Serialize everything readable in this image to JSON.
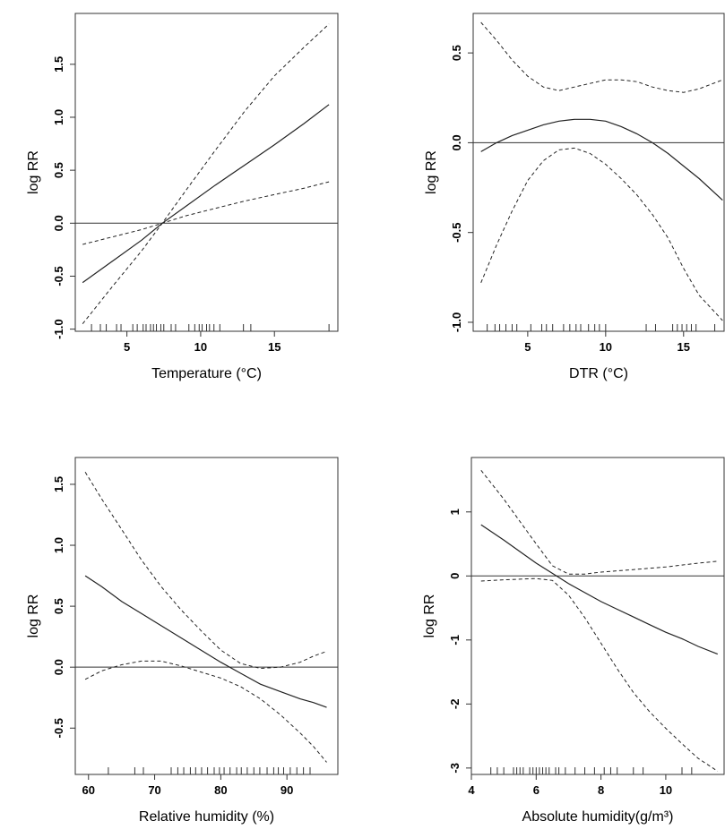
{
  "chart_data": [
    {
      "type": "line",
      "xlabel": "Temperature (°C)",
      "ylabel": "log RR",
      "xlim": [
        1.5,
        19.3
      ],
      "ylim": [
        -1.02,
        1.98
      ],
      "xticks": [
        5,
        10,
        15
      ],
      "xtick_labels": [
        "5",
        "10",
        "15"
      ],
      "yticks": [
        -1.0,
        -0.5,
        0.0,
        0.5,
        1.0,
        1.5
      ],
      "ytick_labels": [
        "-1.0",
        "-0.5",
        "0.0",
        "0.5",
        "1.0",
        "1.5"
      ],
      "reference_line": 0,
      "series": [
        {
          "style": "solid",
          "x": [
            2,
            4,
            6,
            7.4,
            9,
            11,
            13,
            15,
            17,
            18.7
          ],
          "y": [
            -0.56,
            -0.36,
            -0.16,
            0.0,
            0.16,
            0.36,
            0.55,
            0.74,
            0.94,
            1.12
          ]
        },
        {
          "style": "dashed",
          "x": [
            2,
            4,
            6,
            7.4,
            9,
            11,
            13,
            15,
            17,
            18.7
          ],
          "y": [
            -0.95,
            -0.6,
            -0.26,
            0.0,
            0.31,
            0.69,
            1.06,
            1.39,
            1.66,
            1.88
          ]
        },
        {
          "style": "dashed",
          "x": [
            2,
            4,
            6,
            7.4,
            9,
            11,
            13,
            15,
            17,
            18.7
          ],
          "y": [
            -0.2,
            -0.13,
            -0.06,
            0.0,
            0.07,
            0.14,
            0.21,
            0.27,
            0.33,
            0.39
          ]
        }
      ],
      "rug": [
        2.6,
        3.2,
        3.6,
        4.3,
        4.6,
        5.4,
        5.7,
        6.1,
        6.3,
        6.6,
        6.8,
        7.0,
        7.3,
        7.5,
        8.0,
        8.3,
        9.2,
        9.6,
        9.9,
        10.1,
        10.4,
        10.6,
        10.9,
        11.3,
        12.9,
        13.4,
        18.7
      ]
    },
    {
      "type": "line",
      "xlabel": "DTR (°C)",
      "ylabel": "log RR",
      "xlim": [
        1.5,
        17.6
      ],
      "ylim": [
        -1.05,
        0.72
      ],
      "xticks": [
        5,
        10,
        15
      ],
      "xtick_labels": [
        "5",
        "10",
        "15"
      ],
      "yticks": [
        -1.0,
        -0.5,
        0.0,
        0.5
      ],
      "ytick_labels": [
        "-1.0",
        "-0.5",
        "0.0",
        "0.5"
      ],
      "reference_line": 0,
      "series": [
        {
          "style": "solid",
          "x": [
            2,
            3,
            4,
            5,
            6,
            7,
            8,
            9,
            10,
            11,
            12,
            13,
            14,
            15,
            16,
            17.5
          ],
          "y": [
            -0.05,
            0.0,
            0.04,
            0.07,
            0.1,
            0.12,
            0.13,
            0.13,
            0.12,
            0.09,
            0.05,
            0.0,
            -0.06,
            -0.13,
            -0.2,
            -0.32
          ]
        },
        {
          "style": "dashed",
          "x": [
            2,
            3,
            4,
            5,
            6,
            7,
            8,
            9,
            10,
            11,
            12,
            13,
            14,
            15,
            16,
            17.5
          ],
          "y": [
            0.67,
            0.57,
            0.46,
            0.37,
            0.31,
            0.29,
            0.31,
            0.33,
            0.35,
            0.35,
            0.34,
            0.31,
            0.29,
            0.28,
            0.3,
            0.35
          ]
        },
        {
          "style": "dashed",
          "x": [
            2,
            3,
            4,
            5,
            6,
            7,
            8,
            9,
            10,
            11,
            12,
            13,
            14,
            15,
            16,
            17.5
          ],
          "y": [
            -0.78,
            -0.57,
            -0.38,
            -0.21,
            -0.1,
            -0.04,
            -0.03,
            -0.06,
            -0.12,
            -0.2,
            -0.29,
            -0.4,
            -0.53,
            -0.7,
            -0.85,
            -0.99
          ]
        }
      ],
      "rug": [
        2.4,
        2.9,
        3.2,
        3.6,
        4.0,
        4.3,
        5.2,
        5.9,
        6.2,
        6.6,
        7.3,
        7.7,
        8.1,
        8.4,
        8.9,
        9.3,
        9.6,
        10.0,
        12.6,
        13.2,
        14.3,
        14.6,
        14.9,
        15.2,
        15.5,
        15.8,
        17.0
      ]
    },
    {
      "type": "line",
      "xlabel": "Relative humidity (%)",
      "ylabel": "log RR",
      "xlim": [
        58.0,
        97.7
      ],
      "ylim": [
        -0.88,
        1.72
      ],
      "xticks": [
        60,
        70,
        80,
        90
      ],
      "xtick_labels": [
        "60",
        "70",
        "80",
        "90"
      ],
      "yticks": [
        -0.5,
        0.0,
        0.5,
        1.0,
        1.5
      ],
      "ytick_labels": [
        "-0.5",
        "0.0",
        "0.5",
        "1.0",
        "1.5"
      ],
      "reference_line": 0,
      "series": [
        {
          "style": "solid",
          "x": [
            59.5,
            62,
            65,
            68,
            71,
            74,
            77,
            80,
            83,
            86,
            89,
            92,
            94,
            96
          ],
          "y": [
            0.75,
            0.66,
            0.54,
            0.44,
            0.34,
            0.24,
            0.14,
            0.04,
            -0.05,
            -0.14,
            -0.2,
            -0.26,
            -0.29,
            -0.33
          ]
        },
        {
          "style": "dashed",
          "x": [
            59.5,
            62,
            65,
            68,
            71,
            74,
            77,
            80,
            83,
            86,
            89,
            92,
            94,
            96
          ],
          "y": [
            1.6,
            1.38,
            1.13,
            0.88,
            0.66,
            0.47,
            0.3,
            0.14,
            0.03,
            -0.01,
            0.0,
            0.04,
            0.09,
            0.13
          ]
        },
        {
          "style": "dashed",
          "x": [
            59.5,
            62,
            65,
            68,
            71,
            74,
            77,
            80,
            83,
            86,
            89,
            92,
            94,
            96
          ],
          "y": [
            -0.1,
            -0.03,
            0.02,
            0.05,
            0.05,
            0.01,
            -0.04,
            -0.09,
            -0.16,
            -0.26,
            -0.39,
            -0.54,
            -0.65,
            -0.78
          ]
        }
      ],
      "rug": [
        63.0,
        67.0,
        68.3,
        72.5,
        73.5,
        74.4,
        75.4,
        76.2,
        77.1,
        78.0,
        79.0,
        79.8,
        80.5,
        81.4,
        82.4,
        83.1,
        84.0,
        85.0,
        85.9,
        87.0,
        88.0,
        88.7,
        89.5,
        90.5,
        91.5,
        92.5,
        93.5
      ]
    },
    {
      "type": "line",
      "xlabel": "Absolute humidity(g/m³)",
      "ylabel": "log RR",
      "xlim": [
        4.0,
        11.8
      ],
      "ylim": [
        -3.1,
        1.85
      ],
      "xticks": [
        4,
        6,
        8,
        10
      ],
      "xtick_labels": [
        "4",
        "6",
        "8",
        "10"
      ],
      "yticks": [
        -3,
        -2,
        -1,
        0,
        1
      ],
      "ytick_labels": [
        "-3",
        "-2",
        "-1",
        "0",
        "1"
      ],
      "reference_line": 0,
      "series": [
        {
          "style": "solid",
          "x": [
            4.3,
            5.0,
            5.5,
            6.0,
            6.5,
            7.0,
            7.5,
            8.0,
            8.5,
            9.0,
            9.5,
            10.0,
            10.5,
            11.0,
            11.6
          ],
          "y": [
            0.8,
            0.56,
            0.38,
            0.2,
            0.04,
            -0.12,
            -0.26,
            -0.4,
            -0.52,
            -0.64,
            -0.76,
            -0.88,
            -0.98,
            -1.1,
            -1.22
          ]
        },
        {
          "style": "dashed",
          "x": [
            4.3,
            5.0,
            5.5,
            6.0,
            6.5,
            7.0,
            7.5,
            8.0,
            8.5,
            9.0,
            9.5,
            10.0,
            10.5,
            11.0,
            11.6
          ],
          "y": [
            1.65,
            1.2,
            0.85,
            0.5,
            0.16,
            0.03,
            0.03,
            0.06,
            0.08,
            0.1,
            0.12,
            0.14,
            0.17,
            0.2,
            0.23
          ]
        },
        {
          "style": "dashed",
          "x": [
            4.3,
            5.0,
            5.5,
            6.0,
            6.5,
            7.0,
            7.5,
            8.0,
            8.5,
            9.0,
            9.5,
            10.0,
            10.5,
            11.0,
            11.6
          ],
          "y": [
            -0.08,
            -0.06,
            -0.05,
            -0.04,
            -0.07,
            -0.3,
            -0.65,
            -1.05,
            -1.45,
            -1.82,
            -2.12,
            -2.38,
            -2.62,
            -2.85,
            -3.05
          ]
        }
      ],
      "rug": [
        4.6,
        4.8,
        5.0,
        5.3,
        5.4,
        5.5,
        5.6,
        5.8,
        5.9,
        6.0,
        6.1,
        6.2,
        6.3,
        6.4,
        6.6,
        6.7,
        6.9,
        7.2,
        7.5,
        7.8,
        8.1,
        8.3,
        8.5,
        9.0,
        9.3,
        10.5,
        10.8
      ]
    }
  ]
}
